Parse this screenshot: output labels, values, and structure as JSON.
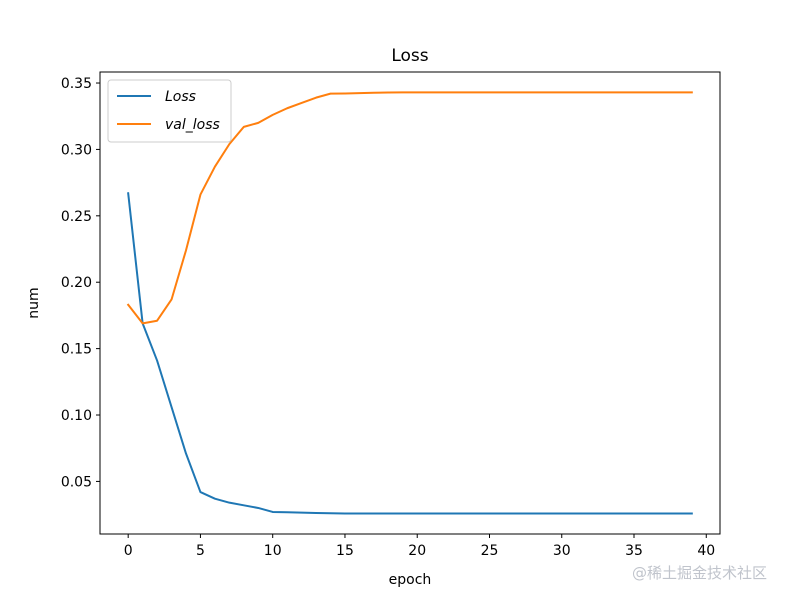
{
  "chart_data": {
    "type": "line",
    "title": "Loss",
    "xlabel": "epoch",
    "ylabel": "num",
    "xlim": [
      -1.95,
      40.95
    ],
    "ylim": [
      0.0104,
      0.3583
    ],
    "xticks": [
      0,
      5,
      10,
      15,
      20,
      25,
      30,
      35,
      40
    ],
    "yticks": [
      0.05,
      0.1,
      0.15,
      0.2,
      0.25,
      0.3,
      0.35
    ],
    "ytick_labels": [
      "0.05",
      "0.10",
      "0.15",
      "0.20",
      "0.25",
      "0.30",
      "0.35"
    ],
    "legend_position": "upper left",
    "series": [
      {
        "name": "Loss",
        "color": "#1f77b4",
        "x": [
          0,
          1,
          2,
          3,
          4,
          5,
          6,
          7,
          8,
          9,
          10,
          11,
          12,
          13,
          14,
          15,
          16,
          17,
          18,
          19,
          20,
          21,
          22,
          23,
          24,
          25,
          26,
          27,
          28,
          29,
          30,
          31,
          32,
          33,
          34,
          35,
          36,
          37,
          38,
          39
        ],
        "values": [
          0.267,
          0.169,
          0.141,
          0.106,
          0.071,
          0.042,
          0.037,
          0.034,
          0.032,
          0.03,
          0.027,
          0.0268,
          0.0265,
          0.0262,
          0.026,
          0.0258,
          0.0258,
          0.0258,
          0.0258,
          0.0258,
          0.0258,
          0.0258,
          0.0258,
          0.0258,
          0.0258,
          0.0258,
          0.0258,
          0.0258,
          0.0258,
          0.0258,
          0.0258,
          0.0258,
          0.0258,
          0.0258,
          0.0258,
          0.0258,
          0.0258,
          0.0258,
          0.0258,
          0.0258
        ]
      },
      {
        "name": "val_loss",
        "legend_label": "val_loss",
        "color": "#ff7f0e",
        "x": [
          0,
          1,
          2,
          3,
          4,
          5,
          6,
          7,
          8,
          9,
          10,
          11,
          12,
          13,
          14,
          15,
          16,
          17,
          18,
          19,
          20,
          21,
          22,
          23,
          24,
          25,
          26,
          27,
          28,
          29,
          30,
          31,
          32,
          33,
          34,
          35,
          36,
          37,
          38,
          39
        ],
        "values": [
          0.183,
          0.169,
          0.171,
          0.187,
          0.224,
          0.266,
          0.287,
          0.304,
          0.317,
          0.32,
          0.326,
          0.331,
          0.335,
          0.339,
          0.342,
          0.3421,
          0.3424,
          0.3427,
          0.3429,
          0.343,
          0.343,
          0.343,
          0.343,
          0.343,
          0.343,
          0.343,
          0.343,
          0.343,
          0.343,
          0.343,
          0.343,
          0.343,
          0.343,
          0.343,
          0.343,
          0.343,
          0.343,
          0.343,
          0.343,
          0.343
        ]
      }
    ]
  },
  "watermark": "@稀土掘金技术社区"
}
